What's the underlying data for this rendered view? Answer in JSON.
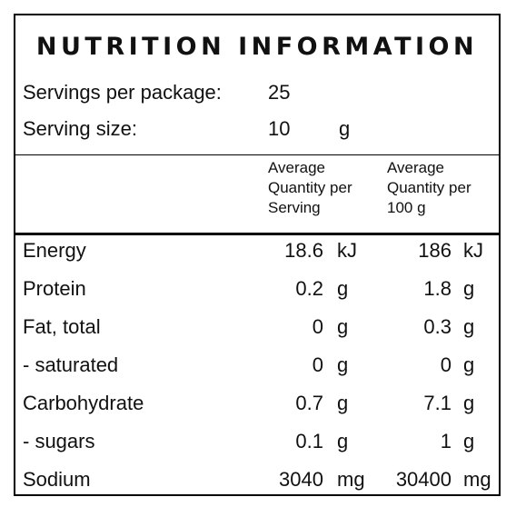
{
  "title": "NUTRITION INFORMATION",
  "servings": {
    "label": "Servings per package:",
    "value": "25"
  },
  "serving_size": {
    "label": "Serving size:",
    "value": "10",
    "unit": "g"
  },
  "columns": {
    "per_serving": [
      "Average",
      "Quantity per",
      "Serving"
    ],
    "per_100g": [
      "Average",
      "Quantity per",
      "100 g"
    ]
  },
  "rows": [
    {
      "name": "Energy",
      "serving": "18.6",
      "serving_unit": "kJ",
      "per100": "186",
      "per100_unit": "kJ"
    },
    {
      "name": "Protein",
      "serving": "0.2",
      "serving_unit": "g",
      "per100": "1.8",
      "per100_unit": "g"
    },
    {
      "name": "Fat, total",
      "serving": "0",
      "serving_unit": "g",
      "per100": "0.3",
      "per100_unit": "g"
    },
    {
      "name": "- saturated",
      "serving": "0",
      "serving_unit": "g",
      "per100": "0",
      "per100_unit": "g"
    },
    {
      "name": "Carbohydrate",
      "serving": "0.7",
      "serving_unit": "g",
      "per100": "7.1",
      "per100_unit": "g"
    },
    {
      "name": "- sugars",
      "serving": "0.1",
      "serving_unit": "g",
      "per100": "1",
      "per100_unit": "g"
    },
    {
      "name": "Sodium",
      "serving": "3040",
      "serving_unit": "mg",
      "per100": "30400",
      "per100_unit": "mg"
    }
  ]
}
